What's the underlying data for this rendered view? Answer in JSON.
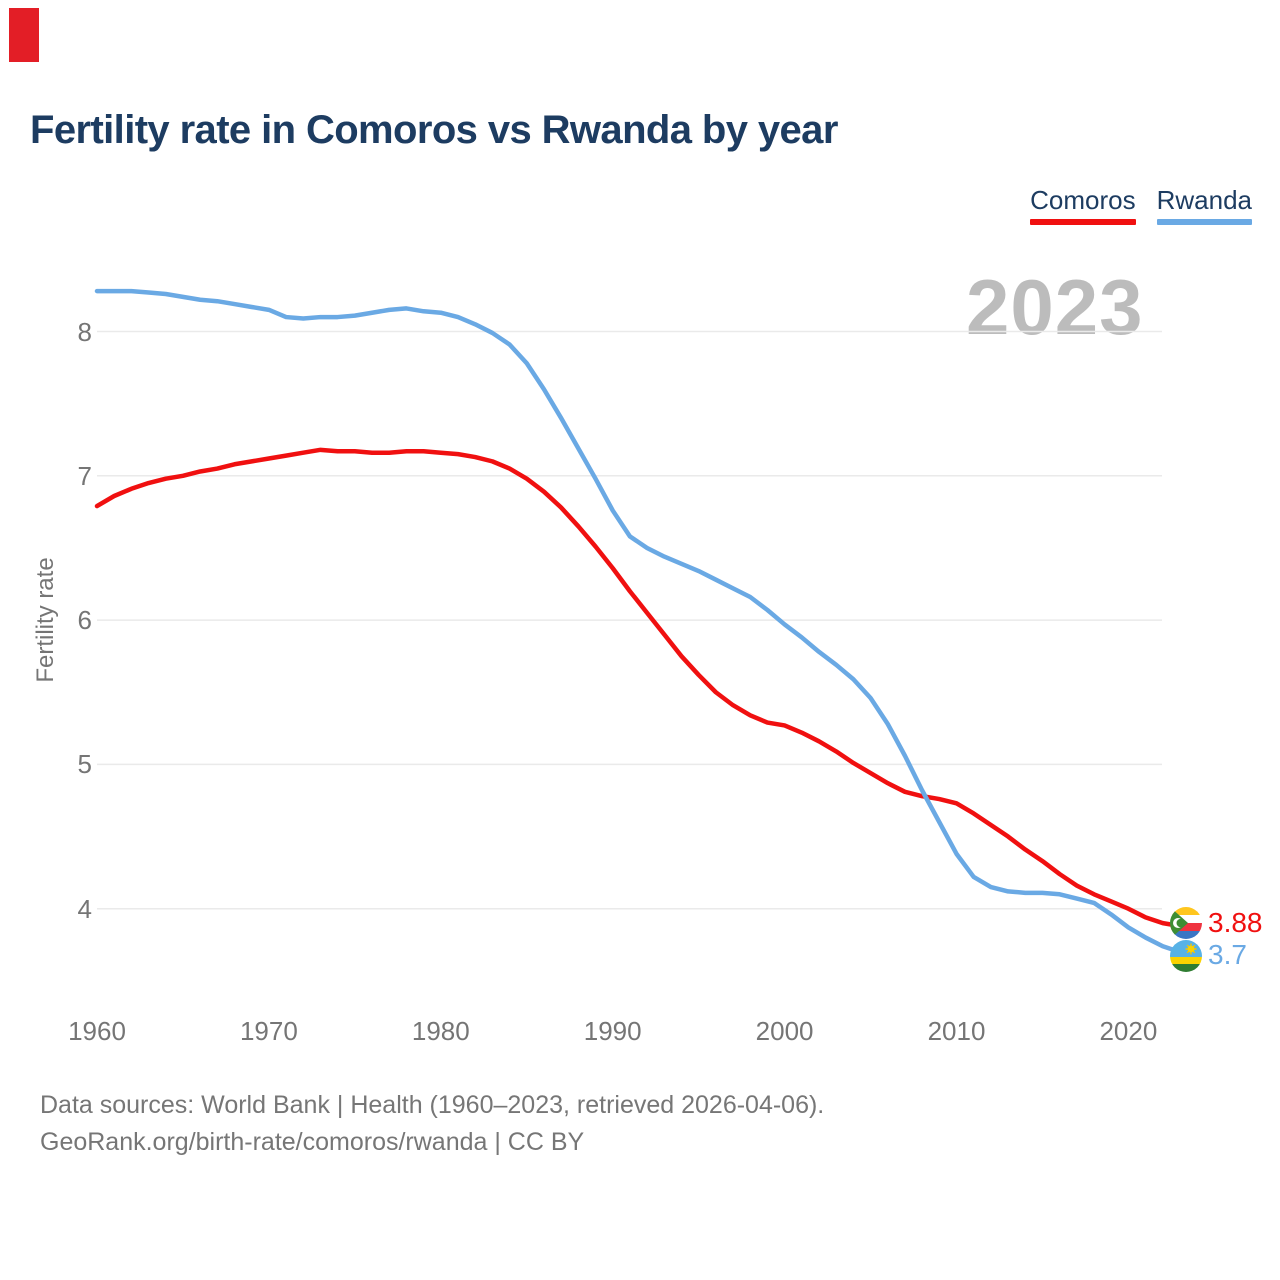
{
  "red_marker": {
    "color": "#e31e26"
  },
  "title": "Fertility rate in Comoros vs Rwanda by year",
  "legend": {
    "items": [
      {
        "label": "Comoros",
        "color": "#f01010"
      },
      {
        "label": "Rwanda",
        "color": "#6aa9e4"
      }
    ]
  },
  "watermark": "2023",
  "y_axis_label": "Fertility rate",
  "end_labels": [
    {
      "icon": "comoros-flag-icon",
      "country": "Comoros",
      "value": "3.88",
      "color": "#f01010"
    },
    {
      "icon": "rwanda-flag-icon",
      "country": "Rwanda",
      "value": "3.7",
      "color": "#6aa9e4"
    }
  ],
  "footer": {
    "line1": "Data sources: World Bank | Health (1960–2023, retrieved 2026-04-06).",
    "line2": "GeoRank.org/birth-rate/comoros/rwanda | CC BY"
  },
  "theme": {
    "navy": "#1d3c61",
    "axis_gray": "#757575",
    "grid": "#eaeaea",
    "watermark_gray": "#bcbcbc",
    "footer_gray": "#767676"
  },
  "chart_data": {
    "type": "line",
    "title": "Fertility rate in Comoros vs Rwanda by year",
    "xlabel": "",
    "ylabel": "Fertility rate",
    "x_ticks": [
      1960,
      1970,
      1980,
      1990,
      2000,
      2010,
      2020
    ],
    "y_ticks": [
      8,
      7,
      6,
      5,
      4
    ],
    "xlim": [
      1960,
      2023
    ],
    "ylim": [
      3.6,
      8.45
    ],
    "grid": "horizontal",
    "legend_position": "top-right",
    "latest_year": "2023",
    "years": [
      1960,
      1961,
      1962,
      1963,
      1964,
      1965,
      1966,
      1967,
      1968,
      1969,
      1970,
      1971,
      1972,
      1973,
      1974,
      1975,
      1976,
      1977,
      1978,
      1979,
      1980,
      1981,
      1982,
      1983,
      1984,
      1985,
      1986,
      1987,
      1988,
      1989,
      1990,
      1991,
      1992,
      1993,
      1994,
      1995,
      1996,
      1997,
      1998,
      1999,
      2000,
      2001,
      2002,
      2003,
      2004,
      2005,
      2006,
      2007,
      2008,
      2009,
      2010,
      2011,
      2012,
      2013,
      2014,
      2015,
      2016,
      2017,
      2018,
      2019,
      2020,
      2021,
      2022,
      2023
    ],
    "series": [
      {
        "name": "Comoros",
        "color": "#f01010",
        "final_value": 3.88,
        "values": [
          6.79,
          6.86,
          6.91,
          6.95,
          6.98,
          7.0,
          7.03,
          7.05,
          7.08,
          7.1,
          7.12,
          7.14,
          7.16,
          7.18,
          7.17,
          7.17,
          7.16,
          7.16,
          7.17,
          7.17,
          7.16,
          7.15,
          7.13,
          7.1,
          7.05,
          6.98,
          6.89,
          6.78,
          6.65,
          6.51,
          6.36,
          6.2,
          6.05,
          5.9,
          5.75,
          5.62,
          5.5,
          5.41,
          5.34,
          5.29,
          5.27,
          5.22,
          5.16,
          5.09,
          5.01,
          4.94,
          4.87,
          4.81,
          4.78,
          4.76,
          4.73,
          4.66,
          4.58,
          4.5,
          4.41,
          4.33,
          4.24,
          4.16,
          4.1,
          4.05,
          4.0,
          3.94,
          3.9,
          3.88
        ]
      },
      {
        "name": "Rwanda",
        "color": "#6aa9e4",
        "final_value": 3.7,
        "values": [
          8.28,
          8.28,
          8.28,
          8.27,
          8.26,
          8.24,
          8.22,
          8.21,
          8.19,
          8.17,
          8.15,
          8.1,
          8.09,
          8.1,
          8.1,
          8.11,
          8.13,
          8.15,
          8.16,
          8.14,
          8.13,
          8.1,
          8.05,
          7.99,
          7.91,
          7.78,
          7.6,
          7.4,
          7.19,
          6.98,
          6.76,
          6.58,
          6.5,
          6.44,
          6.39,
          6.34,
          6.28,
          6.22,
          6.16,
          6.07,
          5.97,
          5.88,
          5.78,
          5.69,
          5.59,
          5.46,
          5.28,
          5.06,
          4.82,
          4.6,
          4.38,
          4.22,
          4.15,
          4.12,
          4.11,
          4.11,
          4.1,
          4.07,
          4.04,
          3.96,
          3.87,
          3.8,
          3.74,
          3.7
        ]
      }
    ]
  }
}
